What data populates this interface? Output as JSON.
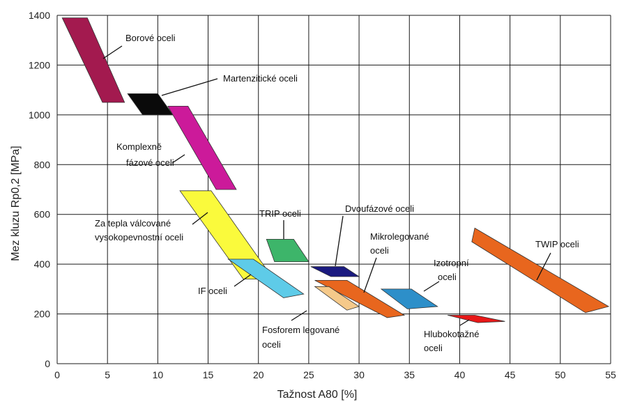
{
  "chart_data": {
    "type": "scatter",
    "title": "",
    "xlabel": "Tažnost A80 [%]",
    "ylabel": "Mez kluzu Rp0,2 [MPa]",
    "xlim": [
      0,
      55
    ],
    "ylim": [
      0,
      1400
    ],
    "xticks": [
      0,
      5,
      10,
      15,
      20,
      25,
      30,
      35,
      40,
      45,
      50,
      55
    ],
    "yticks": [
      0,
      200,
      400,
      600,
      800,
      1000,
      1200,
      1400
    ],
    "grid": true,
    "regions": [
      {
        "label": "Borové oceli",
        "color": "#a31a4f",
        "points": [
          [
            0.5,
            1390
          ],
          [
            3,
            1390
          ],
          [
            6.7,
            1050
          ],
          [
            4.5,
            1050
          ]
        ]
      },
      {
        "label": "Martenzitické oceli",
        "color": "#0a0a0a",
        "points": [
          [
            7,
            1085
          ],
          [
            10,
            1085
          ],
          [
            11.5,
            1000
          ],
          [
            8.5,
            1000
          ]
        ]
      },
      {
        "label": "Komplexně fázové oceli",
        "color": "#cc1a9a",
        "points": [
          [
            11,
            1035
          ],
          [
            13,
            1035
          ],
          [
            17.8,
            700
          ],
          [
            15.8,
            700
          ]
        ]
      },
      {
        "label": "Za tepla válcované vysokopevnostní oceli",
        "color": "#fafa3c",
        "points": [
          [
            12.2,
            695
          ],
          [
            15.3,
            695
          ],
          [
            21.5,
            340
          ],
          [
            18.5,
            340
          ]
        ]
      },
      {
        "label": "TRIP oceli",
        "color": "#3db56a",
        "points": [
          [
            20.8,
            500
          ],
          [
            23.5,
            500
          ],
          [
            25,
            410
          ],
          [
            21.6,
            410
          ]
        ]
      },
      {
        "label": "Dvoufázové oceli",
        "color": "#1a1a80",
        "points": [
          [
            25.2,
            390
          ],
          [
            28.5,
            390
          ],
          [
            30,
            350
          ],
          [
            27.2,
            350
          ]
        ]
      },
      {
        "label": "Mikrolegované oceli",
        "color": "#e8661e",
        "points": [
          [
            25.6,
            335
          ],
          [
            28.8,
            335
          ],
          [
            34.5,
            195
          ],
          [
            32.8,
            185
          ]
        ]
      },
      {
        "label": "IF oceli",
        "color": "#5ecbe8",
        "points": [
          [
            17,
            420
          ],
          [
            19.5,
            420
          ],
          [
            24.5,
            280
          ],
          [
            22.5,
            265
          ]
        ]
      },
      {
        "label": "Fosforem legované oceli",
        "color": "#f5c98a",
        "points": [
          [
            25.6,
            310
          ],
          [
            27,
            310
          ],
          [
            30,
            230
          ],
          [
            28.8,
            215
          ]
        ]
      },
      {
        "label": "Izotropní oceli",
        "color": "#2d8fc9",
        "points": [
          [
            32.2,
            300
          ],
          [
            35.2,
            300
          ],
          [
            37.8,
            230
          ],
          [
            34.8,
            220
          ]
        ]
      },
      {
        "label": "Hlubokotažné oceli",
        "color": "#e81818",
        "points": [
          [
            38.8,
            195
          ],
          [
            41.5,
            195
          ],
          [
            44.5,
            170
          ],
          [
            41.8,
            165
          ]
        ]
      },
      {
        "label": "TWIP oceli",
        "color": "#e8661e",
        "points": [
          [
            41.5,
            545
          ],
          [
            54.8,
            230
          ],
          [
            52.5,
            205
          ],
          [
            41.2,
            490
          ]
        ]
      }
    ]
  },
  "labels": {
    "borove": "Borové oceli",
    "martenziticke": "Martenzitické oceli",
    "komplexne_1": "Komplexně",
    "komplexne_2": "fázové oceli",
    "zatepla_1": "Za tepla válcované",
    "zatepla_2": "vysokopevnostní oceli",
    "trip": "TRIP oceli",
    "dvoufazove": "Dvoufázové oceli",
    "mikrolegovane_1": "Mikrolegované",
    "mikrolegovane_2": "oceli",
    "izotropni_1": "Izotropní",
    "izotropni_2": "oceli",
    "twip": "TWIP oceli",
    "if": "IF oceli",
    "fosforem_1": "Fosforem legované",
    "fosforem_2": "oceli",
    "hlubokotazne_1": "Hlubokotažné",
    "hlubokotazne_2": "oceli"
  }
}
